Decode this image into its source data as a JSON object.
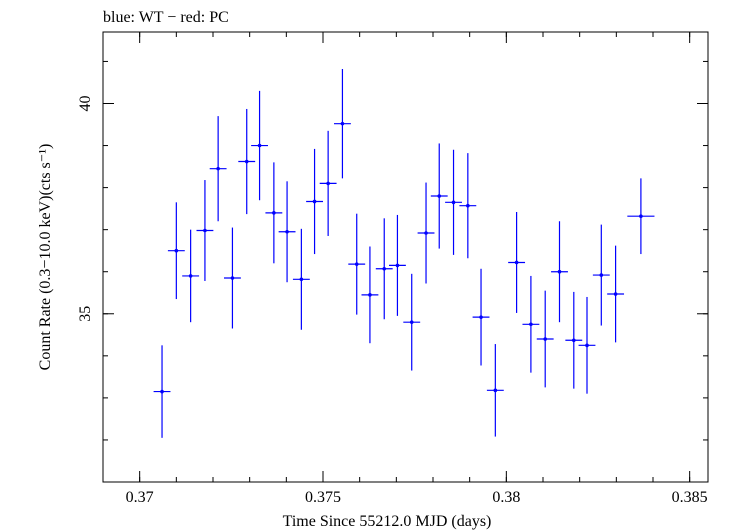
{
  "chart_data": {
    "type": "scatter",
    "title": "blue: WT − red: PC",
    "xlabel": "Time Since 55212.0 MJD (days)",
    "ylabel": "Count Rate (0.3−10.0 keV)(cts s⁻¹)",
    "xlim": [
      0.369,
      0.3855
    ],
    "ylim": [
      31.0,
      41.7
    ],
    "x_ticks": [
      0.37,
      0.375,
      0.38,
      0.385
    ],
    "x_tick_labels": [
      "0.37",
      "0.375",
      "0.38",
      "0.385"
    ],
    "y_ticks": [
      35,
      40
    ],
    "y_tick_labels": [
      "35",
      "40"
    ],
    "grid": false,
    "series": [
      {
        "color": "#0000ff",
        "x_err": 0.00023,
        "points": [
          {
            "x": 0.37061,
            "y": 33.15,
            "yerr": 1.1
          },
          {
            "x": 0.371,
            "y": 36.5,
            "yerr": 1.15
          },
          {
            "x": 0.37139,
            "y": 35.9,
            "yerr": 1.1
          },
          {
            "x": 0.37178,
            "y": 36.98,
            "yerr": 1.2
          },
          {
            "x": 0.37214,
            "y": 38.45,
            "yerr": 1.25
          },
          {
            "x": 0.37253,
            "y": 35.85,
            "yerr": 1.2
          },
          {
            "x": 0.37292,
            "y": 38.62,
            "yerr": 1.25
          },
          {
            "x": 0.37327,
            "y": 39.0,
            "yerr": 1.3
          },
          {
            "x": 0.37366,
            "y": 37.4,
            "yerr": 1.2
          },
          {
            "x": 0.37402,
            "y": 36.95,
            "yerr": 1.2
          },
          {
            "x": 0.37441,
            "y": 35.82,
            "yerr": 1.2
          },
          {
            "x": 0.37477,
            "y": 37.67,
            "yerr": 1.25
          },
          {
            "x": 0.37514,
            "y": 38.1,
            "yerr": 1.25
          },
          {
            "x": 0.37553,
            "y": 39.52,
            "yerr": 1.3
          },
          {
            "x": 0.37592,
            "y": 36.18,
            "yerr": 1.2
          },
          {
            "x": 0.37628,
            "y": 35.45,
            "yerr": 1.15
          },
          {
            "x": 0.37667,
            "y": 36.07,
            "yerr": 1.2
          },
          {
            "x": 0.37703,
            "y": 36.15,
            "yerr": 1.2
          },
          {
            "x": 0.37742,
            "y": 34.8,
            "yerr": 1.15
          },
          {
            "x": 0.37781,
            "y": 36.92,
            "yerr": 1.2
          },
          {
            "x": 0.37817,
            "y": 37.8,
            "yerr": 1.25
          },
          {
            "x": 0.37856,
            "y": 37.65,
            "yerr": 1.25
          },
          {
            "x": 0.37895,
            "y": 37.57,
            "yerr": 1.25
          },
          {
            "x": 0.37931,
            "y": 34.92,
            "yerr": 1.15
          },
          {
            "x": 0.3797,
            "y": 33.18,
            "yerr": 1.1
          },
          {
            "x": 0.38028,
            "y": 36.22,
            "yerr": 1.2
          },
          {
            "x": 0.38067,
            "y": 34.75,
            "yerr": 1.15
          },
          {
            "x": 0.38106,
            "y": 34.4,
            "yerr": 1.15
          },
          {
            "x": 0.38145,
            "y": 36.0,
            "yerr": 1.2
          },
          {
            "x": 0.38184,
            "y": 34.37,
            "yerr": 1.15
          },
          {
            "x": 0.3822,
            "y": 34.25,
            "yerr": 1.15
          },
          {
            "x": 0.38259,
            "y": 35.92,
            "yerr": 1.2
          },
          {
            "x": 0.38298,
            "y": 35.47,
            "yerr": 1.15
          },
          {
            "x": 0.38367,
            "y": 37.32,
            "yerr": 0.9,
            "x_err": 0.00037
          }
        ]
      }
    ]
  }
}
